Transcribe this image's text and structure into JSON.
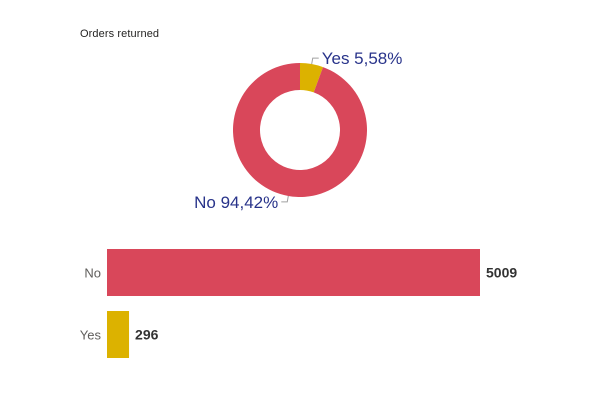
{
  "title": "Orders returned",
  "colors": {
    "No": "#d9475a",
    "Yes": "#dcb200"
  },
  "chart_data": [
    {
      "type": "pie",
      "variant": "donut",
      "labels": [
        "Yes",
        "No"
      ],
      "percent_labels": [
        "5,58%",
        "94,42%"
      ],
      "values": [
        5.58,
        94.42
      ]
    },
    {
      "type": "bar",
      "orientation": "horizontal",
      "categories": [
        "No",
        "Yes"
      ],
      "values": [
        5009,
        296
      ],
      "value_labels": [
        "5009",
        "296"
      ]
    }
  ]
}
